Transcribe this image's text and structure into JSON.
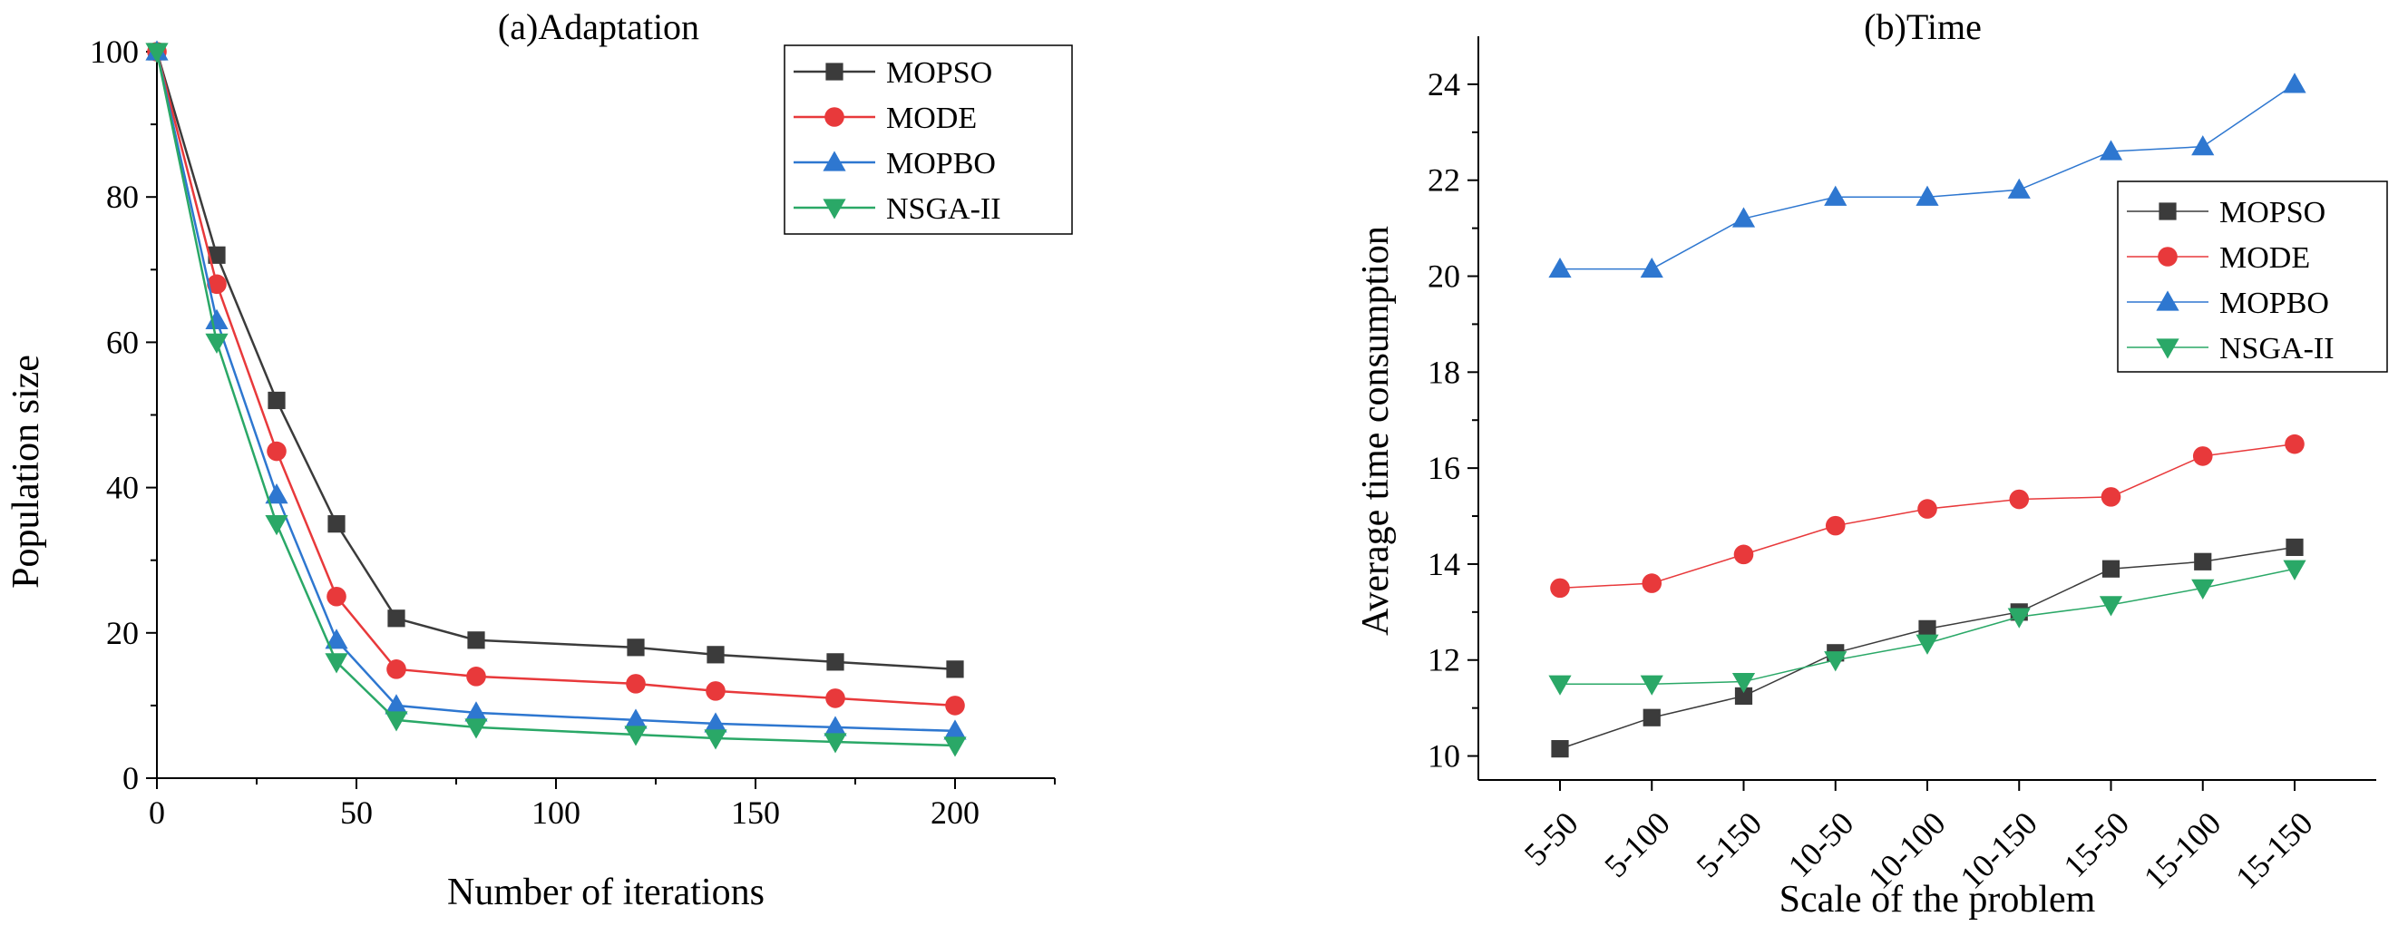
{
  "colors": {
    "MOPSO": "#3b3b3b",
    "MODE": "#e8393b",
    "MOPBO": "#2e77d0",
    "NSGA-II": "#2aa867"
  },
  "chart_data": [
    {
      "type": "line",
      "title": "(a)Adaptation",
      "xlabel": "Number of iterations",
      "ylabel": "Population size",
      "xlim": [
        0,
        225
      ],
      "ylim": [
        0,
        100
      ],
      "xticks": [
        0,
        50,
        100,
        150,
        200
      ],
      "yticks": [
        0,
        20,
        40,
        60,
        80,
        100
      ],
      "x": [
        0,
        15,
        30,
        45,
        60,
        80,
        120,
        140,
        170,
        200
      ],
      "legend_position": "top-right",
      "series": [
        {
          "name": "MOPSO",
          "marker": "square",
          "values": [
            100,
            72,
            52,
            35,
            22,
            19,
            18,
            17,
            16,
            15
          ]
        },
        {
          "name": "MODE",
          "marker": "circle",
          "values": [
            100,
            68,
            45,
            25,
            15,
            14,
            13,
            12,
            11,
            10
          ]
        },
        {
          "name": "MOPBO",
          "marker": "triangle-up",
          "values": [
            100,
            63,
            39,
            19,
            10,
            9,
            8,
            7.5,
            7,
            6.5
          ]
        },
        {
          "name": "NSGA-II",
          "marker": "triangle-down",
          "values": [
            100,
            60,
            35,
            16,
            8,
            7,
            6,
            5.5,
            5,
            4.5
          ]
        }
      ]
    },
    {
      "type": "line",
      "title": "(b)Time",
      "xlabel": "Scale of the problem",
      "ylabel": "Average time consumption",
      "ylim": [
        9.5,
        25
      ],
      "yticks": [
        10,
        12,
        14,
        16,
        18,
        20,
        22,
        24
      ],
      "categories": [
        "5-50",
        "5-100",
        "5-150",
        "10-50",
        "10-100",
        "10-150",
        "15-50",
        "15-100",
        "15-150"
      ],
      "legend_position": "right",
      "series": [
        {
          "name": "MOPSO",
          "marker": "square",
          "values": [
            10.15,
            10.8,
            11.25,
            12.15,
            12.65,
            13.0,
            13.9,
            14.05,
            14.35
          ]
        },
        {
          "name": "MODE",
          "marker": "circle",
          "values": [
            13.5,
            13.6,
            14.2,
            14.8,
            15.15,
            15.35,
            15.4,
            16.25,
            16.5
          ]
        },
        {
          "name": "MOPBO",
          "marker": "triangle-up",
          "values": [
            20.15,
            20.15,
            21.2,
            21.65,
            21.65,
            21.8,
            22.6,
            22.7,
            24.0
          ]
        },
        {
          "name": "NSGA-II",
          "marker": "triangle-down",
          "values": [
            11.5,
            11.5,
            11.55,
            12.0,
            12.35,
            12.9,
            13.15,
            13.5,
            13.9
          ]
        }
      ]
    }
  ]
}
